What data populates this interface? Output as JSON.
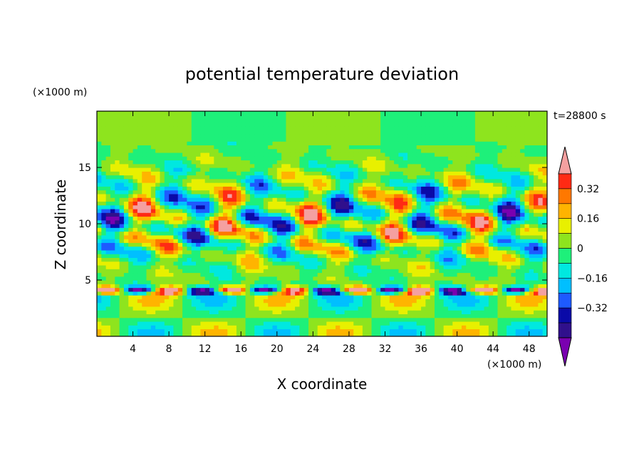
{
  "chart_data": {
    "type": "heatmap",
    "title": "potential temperature deviation",
    "xlabel": "X coordinate",
    "ylabel": "Z coordinate",
    "x_unit": "(×1000 m)",
    "y_unit": "(×1000 m)",
    "time_label": "t=28800 s",
    "xlim": [
      0,
      50
    ],
    "ylim": [
      0,
      20
    ],
    "x_ticks": [
      4,
      8,
      12,
      16,
      20,
      24,
      28,
      32,
      36,
      40,
      44,
      48
    ],
    "y_ticks": [
      5,
      10,
      15
    ],
    "colorbar": {
      "levels": [
        -0.48,
        -0.4,
        -0.32,
        -0.24,
        -0.16,
        -0.08,
        0,
        0.08,
        0.16,
        0.24,
        0.32,
        0.4
      ],
      "colors": [
        "#7a00b0",
        "#30108c",
        "#0a0aa8",
        "#1e5aff",
        "#00bfff",
        "#00e8e0",
        "#1ef07a",
        "#8ee41e",
        "#e8f000",
        "#ffb400",
        "#ff7800",
        "#ff2a14",
        "#f4a0a0"
      ],
      "tick_labels": [
        "0.32",
        "0.16",
        "0",
        "−0.16",
        "−0.32"
      ],
      "tick_values": [
        0.32,
        0.16,
        0,
        -0.16,
        -0.32
      ]
    },
    "field_description": "Gravity wave field; near-zero above z≈17, strong alternating perturbations between z≈4 and z≈16, a sharp layer at z≈4, weaker perturbations below."
  }
}
